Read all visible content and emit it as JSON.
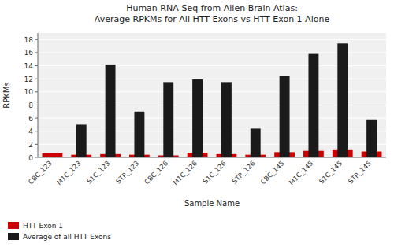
{
  "chart_data": {
    "type": "bar",
    "title": "Human RNA-Seq from Allen Brain Atlas:\nAverage RPKMs for All HTT Exons vs HTT Exon 1 Alone",
    "categories": [
      "CBC_123",
      "M1C_123",
      "S1C_123",
      "STR_123",
      "CBC_126",
      "M1C_126",
      "S1C_126",
      "STR_126",
      "CBC_145",
      "M1C_145",
      "S1C_145",
      "STR_145"
    ],
    "series": [
      {
        "name": "HTT Exon 1",
        "color": "#cc0000",
        "values": [
          0.6,
          0.4,
          0.5,
          0.4,
          0.3,
          0.7,
          0.5,
          0.4,
          0.8,
          1.0,
          1.1,
          0.9
        ]
      },
      {
        "name": "Average of all HTT Exons",
        "color": "#1a1a1a",
        "values": [
          0.0,
          5.0,
          14.2,
          7.0,
          11.5,
          11.9,
          11.5,
          4.4,
          12.5,
          15.8,
          17.4,
          5.8
        ]
      }
    ],
    "xlabel": "Sample Name",
    "ylabel": "RPKMs",
    "ylim": [
      0,
      19
    ],
    "yticks": [
      0,
      2,
      4,
      6,
      8,
      10,
      12,
      14,
      16,
      18
    ],
    "grid": true,
    "legend": "lower left"
  }
}
